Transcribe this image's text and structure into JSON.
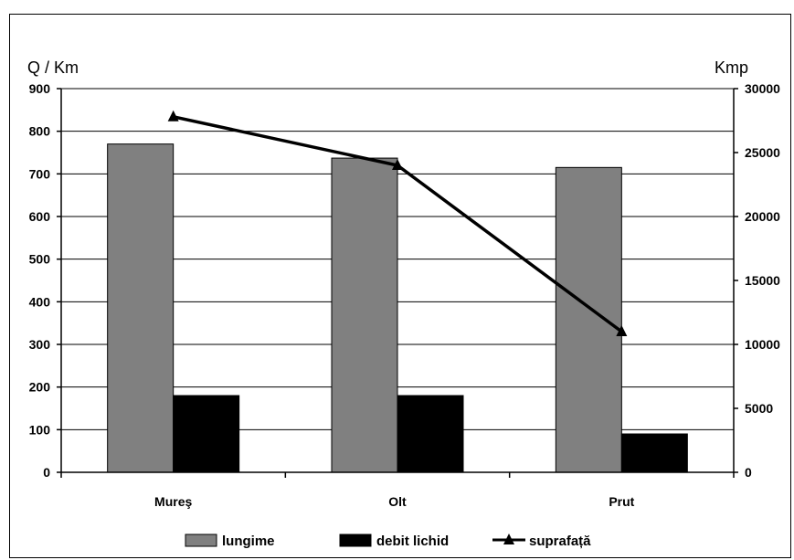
{
  "chart_data": {
    "type": "bar",
    "categories": [
      "Mureş",
      "Olt",
      "Prut"
    ],
    "series": [
      {
        "name": "lungime",
        "type": "bar",
        "axis": "left",
        "values": [
          770,
          737,
          715
        ],
        "color": "#808080"
      },
      {
        "name": "debit lichid",
        "type": "bar",
        "axis": "left",
        "values": [
          180,
          180,
          90
        ],
        "color": "#000000"
      },
      {
        "name": "suprafață",
        "type": "line",
        "axis": "right",
        "values": [
          27800,
          24000,
          11000
        ],
        "color": "#000000",
        "marker": "triangle"
      }
    ],
    "ylabel": "Q / Km",
    "y2label": "Kmp",
    "ylim": [
      0,
      900
    ],
    "y2lim": [
      0,
      30000
    ],
    "yticks": [
      "0",
      "100",
      "200",
      "300",
      "400",
      "500",
      "600",
      "700",
      "800",
      "900"
    ],
    "y2ticks": [
      "0",
      "5000",
      "10000",
      "15000",
      "20000",
      "25000",
      "30000"
    ],
    "grid": true,
    "legend_position": "bottom"
  }
}
